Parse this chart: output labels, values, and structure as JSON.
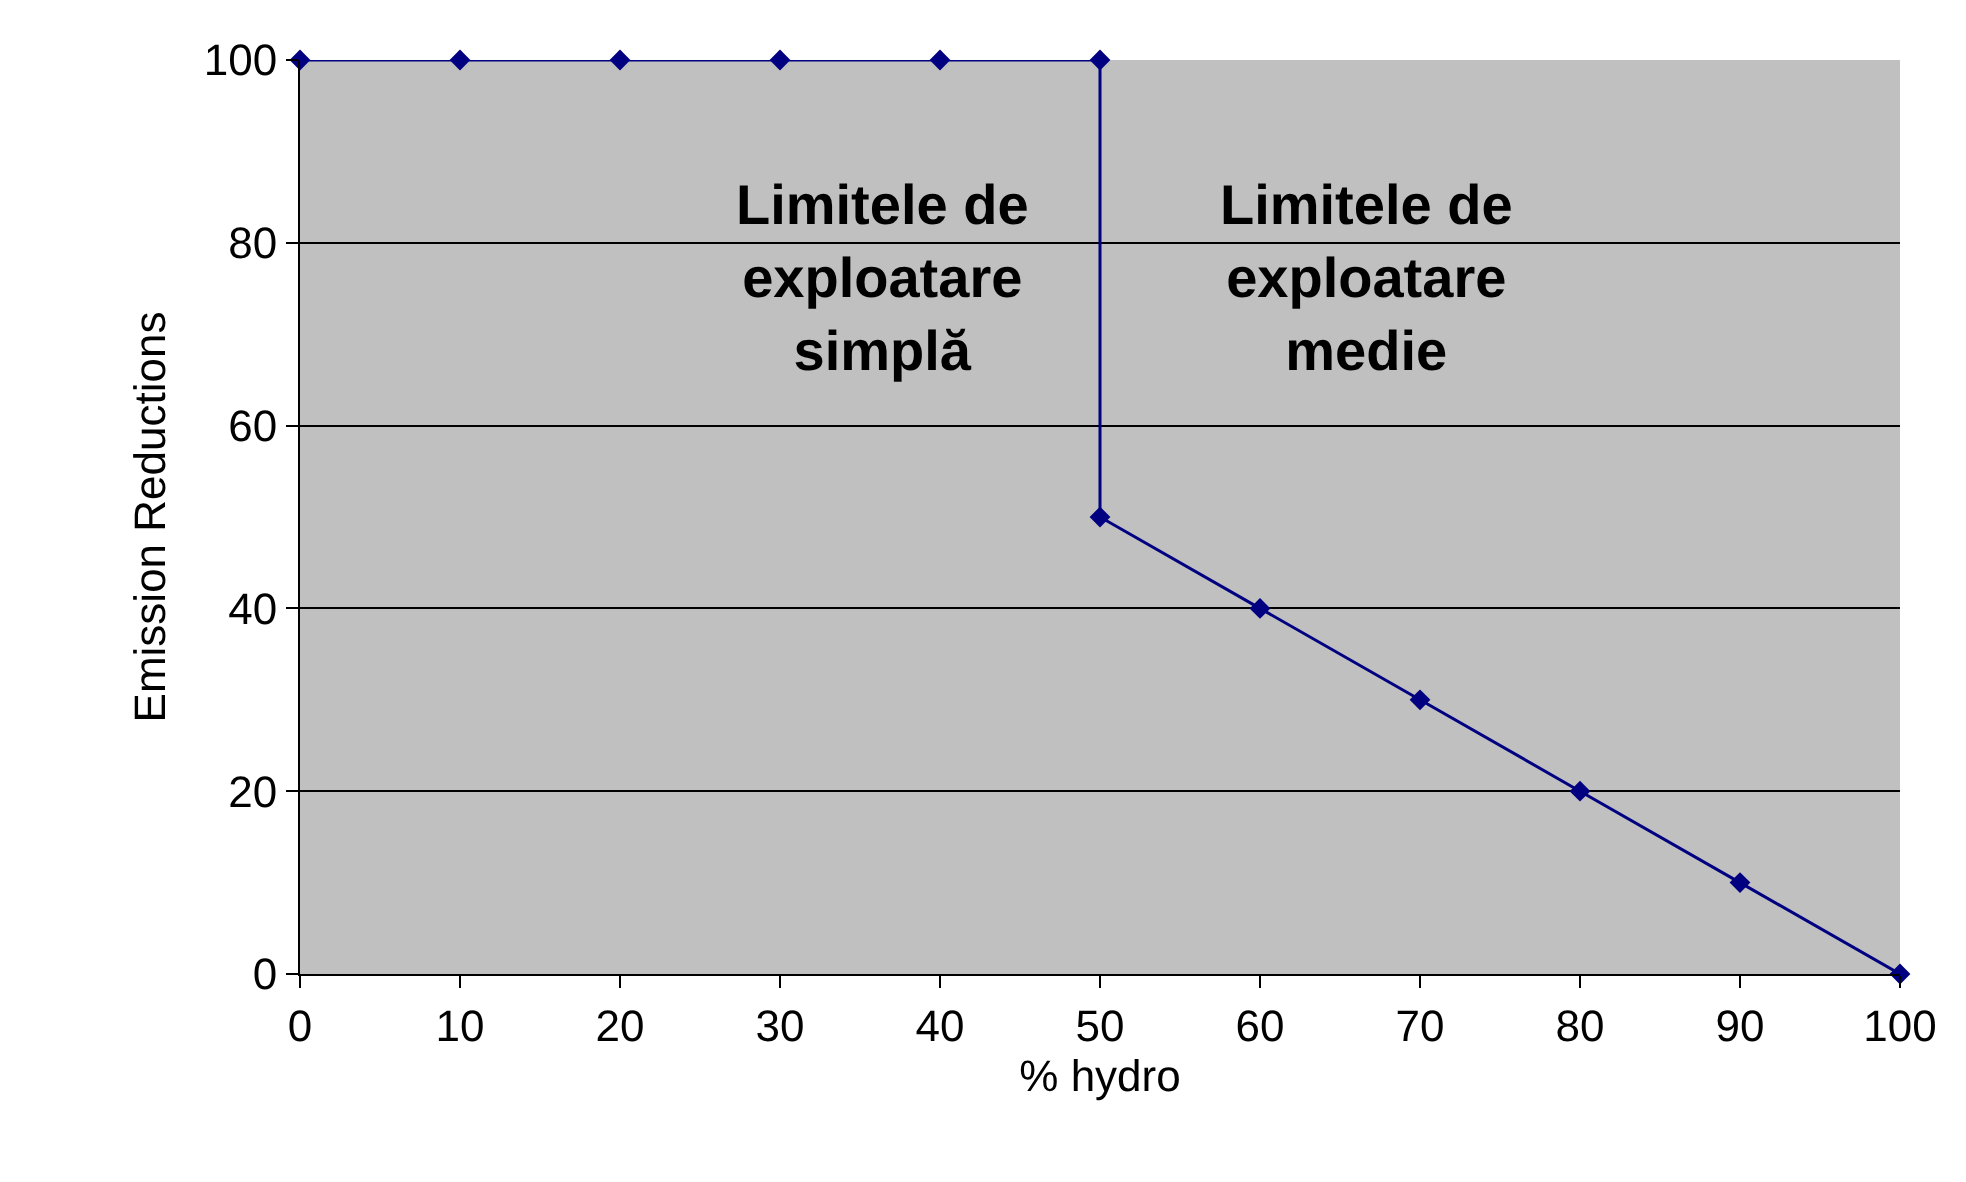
{
  "chart_data": {
    "type": "line",
    "xlabel": "% hydro",
    "ylabel": "Emission Reductions",
    "x": [
      0,
      10,
      20,
      30,
      40,
      50,
      50,
      60,
      70,
      80,
      90,
      100
    ],
    "values": [
      100,
      100,
      100,
      100,
      100,
      100,
      50,
      40,
      30,
      20,
      10,
      0
    ],
    "color": "#000080",
    "marker": "diamond",
    "line_style": "solid",
    "xlim": [
      0,
      100
    ],
    "ylim": [
      0,
      100
    ],
    "xticks": [
      0,
      10,
      20,
      30,
      40,
      50,
      60,
      70,
      80,
      90,
      100
    ],
    "yticks": [
      0,
      20,
      40,
      60,
      80,
      100
    ],
    "grid": "y",
    "legend": false,
    "annotations": [
      "Limitele de\nexploatare\nsimplă",
      "Limitele de\nexploatare\nmedie"
    ]
  }
}
